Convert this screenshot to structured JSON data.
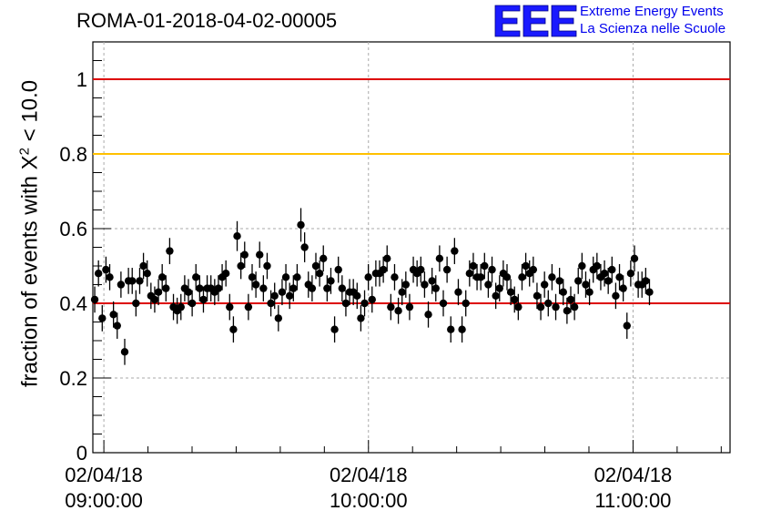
{
  "header": {
    "title": "ROMA-01-2018-04-02-00005",
    "logo_letters": "EEE",
    "logo_line1": "Extreme Energy Events",
    "logo_line2": "La Scienza nelle Scuole"
  },
  "chart_data": {
    "type": "scatter",
    "title": "ROMA-01-2018-04-02-00005",
    "xlabel": "",
    "ylabel_prefix": "fraction of events with",
    "ylabel_symbol": "X",
    "ylabel_superscript": "2",
    "ylabel_suffix": "< 10.0",
    "ylim": [
      0,
      1.1
    ],
    "yticks": [
      "0",
      "0.2",
      "0.4",
      "0.6",
      "0.8",
      "1"
    ],
    "xlim": [
      "2018-04-02 08:57:30",
      "2018-04-02 11:22:00"
    ],
    "xticks": [
      {
        "time": "2018-04-02 09:00:00",
        "date": "02/04/18",
        "clock": "09:00:00"
      },
      {
        "time": "2018-04-02 10:00:00",
        "date": "02/04/18",
        "clock": "10:00:00"
      },
      {
        "time": "2018-04-02 11:00:00",
        "date": "02/04/18",
        "clock": "11:00:00"
      }
    ],
    "grid": true,
    "reference_lines": [
      {
        "y": 1.0,
        "color": "#dd0000"
      },
      {
        "y": 0.8,
        "color": "#ffc000"
      },
      {
        "y": 0.4,
        "color": "#dd0000"
      }
    ],
    "marker_color": "#000000",
    "x_interval_minutes": 0.85,
    "values": [
      0.41,
      0.48,
      0.36,
      0.49,
      0.47,
      0.37,
      0.34,
      0.45,
      0.27,
      0.46,
      0.46,
      0.4,
      0.46,
      0.5,
      0.48,
      0.42,
      0.41,
      0.43,
      0.47,
      0.44,
      0.54,
      0.39,
      0.38,
      0.39,
      0.44,
      0.43,
      0.4,
      0.47,
      0.44,
      0.41,
      0.44,
      0.44,
      0.43,
      0.44,
      0.47,
      0.48,
      0.39,
      0.33,
      0.58,
      0.5,
      0.53,
      0.39,
      0.47,
      0.45,
      0.53,
      0.44,
      0.5,
      0.4,
      0.42,
      0.36,
      0.43,
      0.47,
      0.42,
      0.44,
      0.47,
      0.61,
      0.55,
      0.45,
      0.44,
      0.5,
      0.48,
      0.52,
      0.44,
      0.46,
      0.33,
      0.49,
      0.44,
      0.4,
      0.43,
      0.43,
      0.42,
      0.36,
      0.4,
      0.47,
      0.41,
      0.48,
      0.48,
      0.49,
      0.52,
      0.39,
      0.47,
      0.38,
      0.43,
      0.45,
      0.39,
      0.49,
      0.48,
      0.49,
      0.45,
      0.37,
      0.46,
      0.44,
      0.52,
      0.4,
      0.49,
      0.33,
      0.54,
      0.43,
      0.33,
      0.4,
      0.48,
      0.5,
      0.47,
      0.47,
      0.5,
      0.45,
      0.49,
      0.42,
      0.44,
      0.48,
      0.47,
      0.43,
      0.41,
      0.39,
      0.47,
      0.5,
      0.48,
      0.49,
      0.42,
      0.39,
      0.45,
      0.4,
      0.47,
      0.39,
      0.46,
      0.43,
      0.38,
      0.41,
      0.39,
      0.46,
      0.5,
      0.45,
      0.43,
      0.49,
      0.5,
      0.47,
      0.48,
      0.46,
      0.49,
      0.42,
      0.47,
      0.44,
      0.34,
      0.48,
      0.52,
      0.45,
      0.45,
      0.46,
      0.43
    ],
    "errors": [
      0.035,
      0.035,
      0.035,
      0.035,
      0.035,
      0.035,
      0.035,
      0.035,
      0.035,
      0.035,
      0.035,
      0.035,
      0.035,
      0.035,
      0.035,
      0.035,
      0.035,
      0.035,
      0.035,
      0.035,
      0.035,
      0.035,
      0.035,
      0.035,
      0.035,
      0.035,
      0.035,
      0.035,
      0.035,
      0.035,
      0.035,
      0.035,
      0.035,
      0.035,
      0.035,
      0.035,
      0.035,
      0.035,
      0.04,
      0.035,
      0.035,
      0.035,
      0.035,
      0.035,
      0.035,
      0.035,
      0.035,
      0.035,
      0.035,
      0.035,
      0.035,
      0.035,
      0.035,
      0.035,
      0.035,
      0.045,
      0.04,
      0.035,
      0.035,
      0.035,
      0.035,
      0.035,
      0.035,
      0.035,
      0.035,
      0.035,
      0.035,
      0.035,
      0.035,
      0.035,
      0.035,
      0.035,
      0.035,
      0.035,
      0.035,
      0.035,
      0.035,
      0.035,
      0.035,
      0.035,
      0.035,
      0.035,
      0.035,
      0.035,
      0.035,
      0.035,
      0.035,
      0.035,
      0.035,
      0.035,
      0.035,
      0.035,
      0.035,
      0.035,
      0.035,
      0.035,
      0.035,
      0.035,
      0.035,
      0.035,
      0.035,
      0.035,
      0.035,
      0.035,
      0.035,
      0.035,
      0.035,
      0.035,
      0.035,
      0.035,
      0.035,
      0.035,
      0.035,
      0.035,
      0.035,
      0.035,
      0.035,
      0.035,
      0.035,
      0.035,
      0.035,
      0.035,
      0.035,
      0.035,
      0.035,
      0.035,
      0.035,
      0.035,
      0.035,
      0.035,
      0.035,
      0.035,
      0.035,
      0.035,
      0.035,
      0.035,
      0.035,
      0.035,
      0.035,
      0.035,
      0.035,
      0.035,
      0.035,
      0.035,
      0.035,
      0.035,
      0.035,
      0.035,
      0.035
    ]
  }
}
